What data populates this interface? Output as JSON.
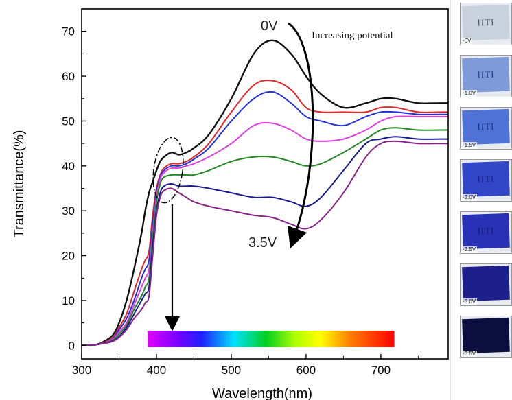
{
  "chart_data": {
    "type": "line",
    "xlabel": "Wavelength(nm)",
    "ylabel": "Transmittance(%)",
    "xlim": [
      300,
      790
    ],
    "ylim": [
      -3,
      75
    ],
    "xticks": [
      300,
      400,
      500,
      600,
      700
    ],
    "yticks": [
      0,
      10,
      20,
      30,
      40,
      50,
      60,
      70
    ],
    "x": [
      300,
      320,
      340,
      350,
      360,
      370,
      380,
      385,
      390,
      395,
      400,
      405,
      410,
      420,
      430,
      440,
      450,
      470,
      500,
      530,
      555,
      580,
      600,
      620,
      650,
      680,
      700,
      720,
      750,
      780,
      790
    ],
    "series": [
      {
        "name": "0V",
        "color": "#111111",
        "values": [
          0,
          0.2,
          2,
          5,
          10,
          17,
          25,
          30,
          34,
          36.5,
          39,
          41,
          42,
          43,
          42.5,
          43,
          44,
          47,
          55,
          65,
          68,
          65,
          60,
          56,
          53,
          54,
          55,
          55,
          54,
          54,
          54
        ]
      },
      {
        "name": "-1.0V",
        "color": "#e02828",
        "values": [
          0,
          0.2,
          1.5,
          4,
          7,
          12,
          17,
          19,
          21,
          29,
          35,
          38,
          39.5,
          40.5,
          40.5,
          41,
          42,
          45,
          52,
          58,
          59,
          57,
          53,
          52,
          52,
          52,
          53,
          53,
          52,
          52,
          52
        ]
      },
      {
        "name": "-1.5V",
        "color": "#2233dd",
        "values": [
          0,
          0.2,
          1.3,
          3.5,
          6,
          10,
          15,
          17,
          19,
          27,
          34,
          37.5,
          39,
          40,
          40,
          40.5,
          41.5,
          44,
          50,
          55,
          56.5,
          54,
          51,
          50,
          49,
          51,
          52,
          52,
          51.5,
          51.5,
          51.5
        ]
      },
      {
        "name": "-2.0V",
        "color": "#e040e0",
        "values": [
          0,
          0.2,
          1.2,
          3,
          5,
          9,
          13,
          15,
          17,
          25,
          33,
          37,
          38.5,
          39.5,
          39.5,
          40,
          40.5,
          42,
          45,
          49,
          49.5,
          48,
          46,
          45.5,
          46,
          48,
          50,
          51,
          51,
          51,
          51
        ]
      },
      {
        "name": "-2.5V",
        "color": "#228822",
        "values": [
          0,
          0.2,
          1,
          2.5,
          4.5,
          8,
          11,
          13,
          15,
          24,
          32,
          36,
          37.5,
          38,
          38,
          38,
          38,
          39,
          41,
          42,
          42,
          41,
          40,
          40.5,
          43,
          46,
          48,
          48.5,
          48,
          48,
          48
        ]
      },
      {
        "name": "-3.0V",
        "color": "#1a1a90",
        "values": [
          0,
          0.2,
          0.9,
          2,
          4,
          7,
          10,
          11.5,
          13,
          22,
          30,
          34,
          35.5,
          36,
          35.5,
          35.5,
          35.5,
          35,
          34,
          33,
          33,
          32,
          31,
          33,
          39,
          45,
          46,
          46.5,
          46,
          46,
          46
        ]
      },
      {
        "name": "-3.5V",
        "color": "#882288",
        "values": [
          0,
          0.2,
          0.8,
          1.8,
          3.5,
          6,
          8,
          9.5,
          11,
          20,
          29,
          33,
          34.5,
          35,
          34,
          33,
          32,
          31,
          30,
          29,
          28.5,
          27,
          26,
          28,
          34,
          42,
          45,
          45.5,
          45,
          45,
          45
        ]
      }
    ],
    "annotations": {
      "top_label": "0V",
      "bottom_label": "3.5V",
      "arrow_text": "Increasing potential"
    },
    "spectrum_bar_range": [
      388,
      718
    ]
  },
  "samples": [
    {
      "label": "-0V",
      "text": "IITI",
      "bg": "#c9d2dc",
      "fg": "#4a5670"
    },
    {
      "label": "-1.0V",
      "text": "IITI",
      "bg": "#7e9ad8",
      "fg": "#243a88"
    },
    {
      "label": "-1.5V",
      "text": "IITI",
      "bg": "#4f72d6",
      "fg": "#1a2d80"
    },
    {
      "label": "-2.0V",
      "text": "IITI",
      "bg": "#3346c8",
      "fg": "#1a2178"
    },
    {
      "label": "-2.5V",
      "text": "IITI",
      "bg": "#2830b4",
      "fg": "#151870"
    },
    {
      "label": "-3.0V",
      "text": "",
      "bg": "#1c1f8c",
      "fg": "#10125a"
    },
    {
      "label": "-3.5V",
      "text": "",
      "bg": "#0c0e40",
      "fg": "#05061e"
    }
  ]
}
